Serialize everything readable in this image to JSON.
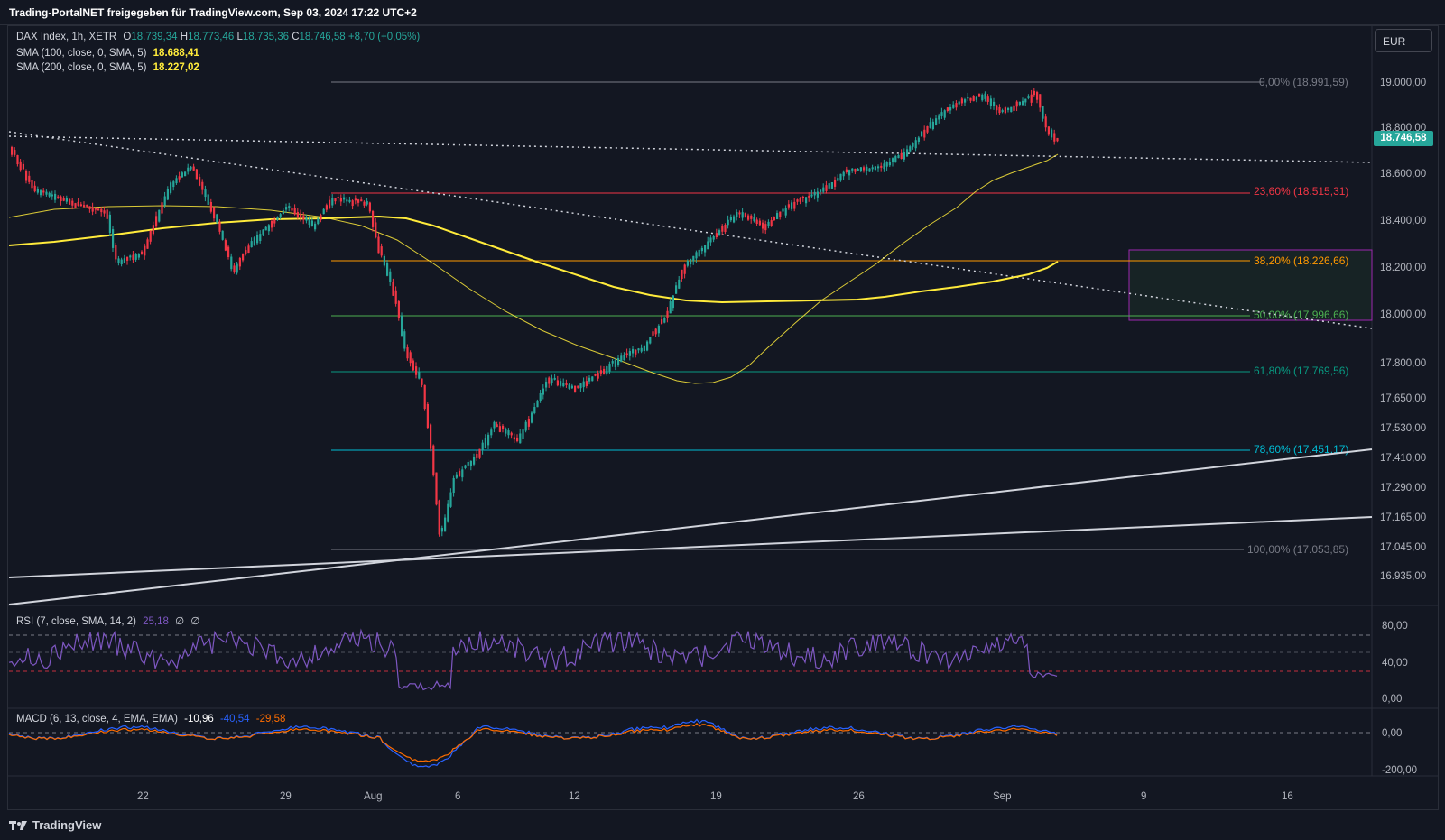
{
  "header": {
    "title": "Trading-PortalNET freigegeben für TradingView.com, Sep 03, 2024 17:22 UTC+2"
  },
  "legend": {
    "symbol": "DAX Index, 1h, XETR",
    "o_label": "O",
    "o_value": "18.739,34",
    "h_label": "H",
    "h_value": "18.773,46",
    "l_label": "L",
    "l_value": "18.735,36",
    "c_label": "C",
    "c_value": "18.746,58",
    "change": "+8,70 (+0,05%)",
    "sma100_label": "SMA (100, close, 0, SMA, 5)",
    "sma100_value": "18.688,41",
    "sma200_label": "SMA (200, close, 0, SMA, 5)",
    "sma200_value": "18.227,02"
  },
  "currency": "EUR",
  "last_price": "18.746,58",
  "price_axis": [
    "19.000,00",
    "18.800,00",
    "18.600,00",
    "18.400,00",
    "18.200,00",
    "18.000,00",
    "17.800,00",
    "17.650,00",
    "17.530,00",
    "17.410,00",
    "17.290,00",
    "17.165,00",
    "17.045,00",
    "16.935,00"
  ],
  "fib_levels": [
    {
      "label": "0,00% (18.991,59)",
      "color": "#787b86"
    },
    {
      "label": "23,60% (18.515,31)",
      "color": "#f23645"
    },
    {
      "label": "38,20% (18.226,66)",
      "color": "#ff9800"
    },
    {
      "label": "50,00% (17.996,66)",
      "color": "#4caf50"
    },
    {
      "label": "61,80% (17.769,56)",
      "color": "#089981"
    },
    {
      "label": "78,60% (17.451,17)",
      "color": "#00bcd4"
    },
    {
      "label": "100,00% (17.053,85)",
      "color": "#787b86"
    }
  ],
  "rsi": {
    "label": "RSI (7, close, SMA, 14, 2)",
    "value": "25,18",
    "extra1": "∅",
    "extra2": "∅",
    "axis": [
      "80,00",
      "40,00",
      "0,00"
    ]
  },
  "macd": {
    "label": "MACD (6, 13, close, 4, EMA, EMA)",
    "hist": "-10,96",
    "macd": "-40,54",
    "signal": "-29,58",
    "axis": [
      "0,00",
      "-200,00"
    ]
  },
  "time_axis": [
    "22",
    "29",
    "Aug",
    "6",
    "12",
    "19",
    "26",
    "Sep",
    "9",
    "16"
  ],
  "footer": {
    "brand": "TradingView"
  },
  "colors": {
    "up": "#26a69a",
    "down": "#f23645",
    "sma100": "#ffeb3b",
    "sma200": "#ffeb3b",
    "rsi": "#7e57c2",
    "macd": "#2962ff",
    "signal": "#ff6d00"
  }
}
